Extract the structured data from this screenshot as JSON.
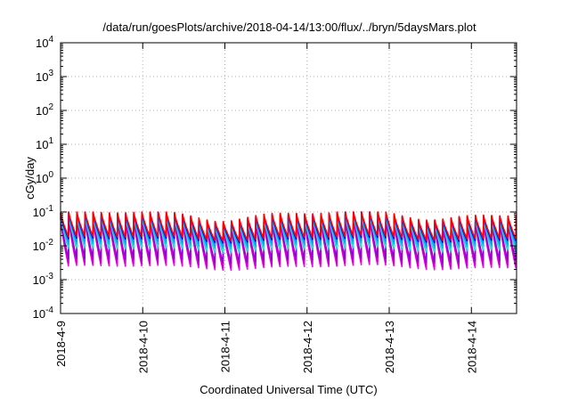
{
  "chart_data": {
    "type": "line",
    "title": "/data/run/goesPlots/archive/2018-04-14/13:00/flux/../bryn/5daysMars.plot",
    "xlabel": "Coordinated Universal Time (UTC)",
    "ylabel": "cGy/day",
    "x_tick_labels": [
      "2018-4-9",
      "2018-4-10",
      "2018-4-11",
      "2018-4-12",
      "2018-4-13",
      "2018-4-14"
    ],
    "x_range_days": [
      0,
      5.55
    ],
    "ylim": [
      0.0001,
      10000
    ],
    "y_scale": "log",
    "y_ticks": [
      {
        "base": "10",
        "exp": "-4"
      },
      {
        "base": "10",
        "exp": "-3"
      },
      {
        "base": "10",
        "exp": "-2"
      },
      {
        "base": "10",
        "exp": "-1"
      },
      {
        "base": "10",
        "exp": "0"
      },
      {
        "base": "10",
        "exp": "1"
      },
      {
        "base": "10",
        "exp": "2"
      },
      {
        "base": "10",
        "exp": "3"
      },
      {
        "base": "10",
        "exp": "4"
      }
    ],
    "grid": true,
    "legend": "none",
    "sawtooth_period_days": 0.099,
    "series": [
      {
        "color": "#ff00ff",
        "min": 0.0025,
        "max": 0.055
      },
      {
        "color": "#cc00cc",
        "min": 0.003,
        "max": 0.06
      },
      {
        "color": "#9400d3",
        "min": 0.004,
        "max": 0.065
      },
      {
        "color": "#00c8c8",
        "min": 0.008,
        "max": 0.07
      },
      {
        "color": "#40e0d0",
        "min": 0.009,
        "max": 0.072
      },
      {
        "color": "#00bfff",
        "min": 0.011,
        "max": 0.075
      },
      {
        "color": "#1e90ff",
        "min": 0.013,
        "max": 0.078
      },
      {
        "color": "#0000ff",
        "min": 0.016,
        "max": 0.08
      },
      {
        "color": "#ff0000",
        "min": 0.018,
        "max": 0.085
      }
    ]
  }
}
